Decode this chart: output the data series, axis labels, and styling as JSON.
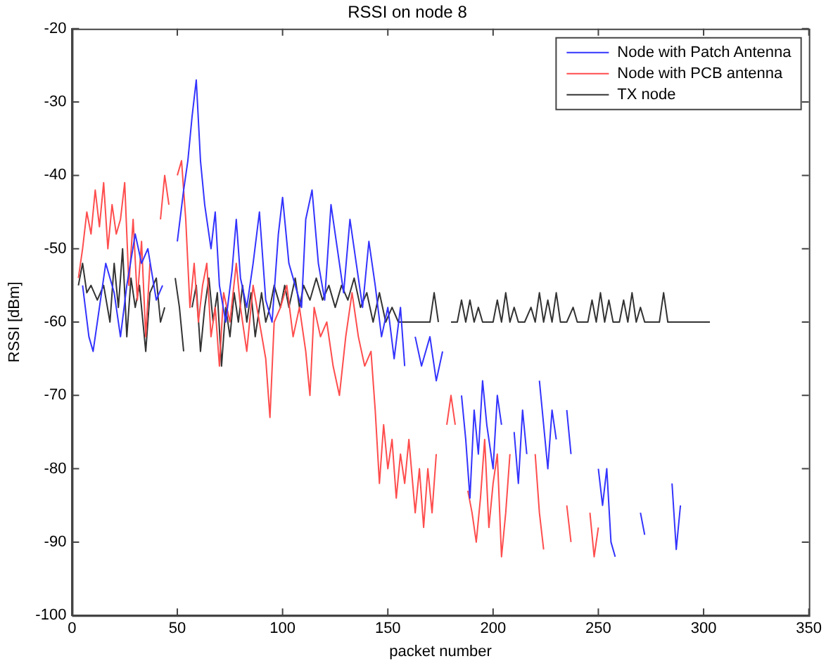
{
  "chart_data": {
    "type": "line",
    "title": "RSSI on node 8",
    "xlabel": "packet number",
    "ylabel": "RSSI [dBm]",
    "xlim": [
      0,
      350
    ],
    "xticks": [
      0,
      50,
      100,
      150,
      200,
      250,
      300,
      350
    ],
    "ylim": [
      -100,
      -20
    ],
    "yticks": [
      -100,
      -90,
      -80,
      -70,
      -60,
      -50,
      -40,
      -30,
      -20
    ],
    "grid": false,
    "legend": "top right",
    "marker": "none",
    "line_style": "solid",
    "series": [
      {
        "name": "Node with Patch Antenna",
        "color": "#3333ff",
        "x": [
          5,
          8,
          10,
          13,
          16,
          20,
          23,
          26,
          30,
          33,
          36,
          40,
          43,
          46,
          50,
          53,
          55,
          57,
          59,
          61,
          63,
          66,
          68,
          70,
          73,
          76,
          78,
          80,
          83,
          86,
          89,
          92,
          95,
          98,
          100,
          103,
          106,
          109,
          111,
          114,
          117,
          120,
          123,
          126,
          129,
          132,
          135,
          138,
          141,
          144,
          147,
          150,
          153,
          156,
          158,
          160,
          163,
          166,
          170,
          173,
          176,
          178,
          185,
          187,
          189,
          191,
          193,
          195,
          197,
          200,
          202,
          204,
          206,
          210,
          212,
          214,
          216,
          218,
          222,
          224,
          226,
          228,
          230,
          232,
          235,
          237,
          238,
          250,
          252,
          254,
          256,
          258,
          260,
          270,
          272,
          273,
          285,
          287,
          289
        ],
        "values": [
          -55,
          -62,
          -64,
          -58,
          -52,
          -56,
          -62,
          -55,
          -48,
          -52,
          -50,
          -57,
          -55,
          null,
          -49,
          -42,
          -38,
          -32,
          -27,
          -38,
          -44,
          -50,
          -45,
          -55,
          -60,
          -53,
          -46,
          -54,
          -58,
          -52,
          -45,
          -57,
          -60,
          -48,
          -43,
          -52,
          -55,
          -58,
          -46,
          -42,
          -52,
          -57,
          -44,
          -50,
          -56,
          -46,
          -52,
          -58,
          -49,
          -55,
          -62,
          -58,
          -65,
          -58,
          -66,
          null,
          -62,
          -66,
          -62,
          -68,
          -64,
          null,
          -70,
          -76,
          -84,
          -72,
          -78,
          -68,
          -74,
          -80,
          -70,
          -74,
          null,
          -75,
          -82,
          -72,
          -78,
          null,
          -68,
          -74,
          -80,
          -72,
          -76,
          null,
          -72,
          -78,
          null,
          -80,
          -85,
          -80,
          -90,
          -92,
          null,
          -86,
          -89,
          null,
          -82,
          -91,
          -85
        ]
      },
      {
        "name": "Node with PCB antenna",
        "color": "#ff4d4d",
        "x": [
          3,
          5,
          7,
          9,
          11,
          13,
          15,
          17,
          19,
          21,
          23,
          25,
          27,
          29,
          31,
          33,
          35,
          37,
          40,
          42,
          44,
          46,
          48,
          50,
          52,
          54,
          56,
          58,
          60,
          62,
          64,
          66,
          68,
          70,
          72,
          75,
          78,
          80,
          83,
          86,
          89,
          92,
          94,
          96,
          99,
          102,
          105,
          108,
          111,
          113,
          115,
          118,
          121,
          124,
          127,
          130,
          133,
          136,
          139,
          142,
          144,
          146,
          148,
          150,
          152,
          154,
          156,
          158,
          160,
          163,
          165,
          167,
          169,
          171,
          173,
          175,
          178,
          180,
          182,
          184,
          188,
          190,
          192,
          194,
          196,
          198,
          200,
          202,
          204,
          206,
          208,
          210,
          220,
          222,
          224,
          226,
          235,
          237,
          238,
          246,
          248,
          250
        ],
        "values": [
          -54,
          -50,
          -45,
          -48,
          -42,
          -47,
          -41,
          -50,
          -44,
          -48,
          -46,
          -41,
          -55,
          -46,
          -57,
          -49,
          -62,
          -52,
          null,
          -46,
          -40,
          -44,
          null,
          -40,
          -38,
          -46,
          -58,
          -52,
          -60,
          -55,
          -52,
          -62,
          -58,
          -66,
          -56,
          -60,
          -52,
          -58,
          -64,
          -55,
          -60,
          -65,
          -73,
          -60,
          -58,
          -55,
          -62,
          -58,
          -64,
          -70,
          -58,
          -62,
          -60,
          -66,
          -70,
          -62,
          -56,
          -62,
          -66,
          -64,
          -72,
          -82,
          -74,
          -80,
          -76,
          -84,
          -78,
          -82,
          -76,
          -86,
          -80,
          -88,
          -80,
          -86,
          -78,
          null,
          -74,
          -70,
          -74,
          null,
          -83,
          -86,
          -90,
          -84,
          -76,
          -88,
          -82,
          -78,
          -92,
          -86,
          -78,
          null,
          -78,
          -86,
          -91,
          null,
          -85,
          -90,
          null,
          -86,
          -92,
          -88
        ]
      },
      {
        "name": "TX node",
        "color": "#333333",
        "x": [
          3,
          5,
          7,
          9,
          12,
          15,
          18,
          20,
          22,
          24,
          26,
          28,
          30,
          32,
          35,
          37,
          40,
          42,
          44,
          46,
          49,
          51,
          53,
          55,
          57,
          59,
          61,
          63,
          65,
          67,
          69,
          71,
          73,
          75,
          77,
          79,
          81,
          83,
          85,
          87,
          90,
          92,
          94,
          96,
          99,
          101,
          103,
          106,
          108,
          110,
          113,
          116,
          119,
          122,
          125,
          128,
          131,
          134,
          137,
          140,
          143,
          146,
          149,
          152,
          155,
          158,
          165,
          170,
          172,
          174,
          176,
          180,
          183,
          185,
          187,
          189,
          191,
          193,
          195,
          197,
          200,
          202,
          204,
          206,
          208,
          210,
          212,
          215,
          218,
          220,
          222,
          224,
          226,
          228,
          230,
          232,
          235,
          238,
          240,
          245,
          247,
          249,
          251,
          253,
          255,
          257,
          260,
          262,
          264,
          266,
          268,
          270,
          272,
          275,
          279,
          281,
          283,
          290,
          300,
          303
        ],
        "values": [
          -55,
          -52,
          -56,
          -55,
          -57,
          -55,
          -60,
          -52,
          -58,
          -50,
          -62,
          -54,
          -58,
          -55,
          -64,
          -56,
          -54,
          -60,
          -58,
          null,
          -54,
          -58,
          -64,
          null,
          -58,
          -55,
          -64,
          -58,
          -54,
          -60,
          -56,
          -66,
          -58,
          -62,
          -56,
          -60,
          -55,
          -60,
          -56,
          -62,
          -56,
          -60,
          -58,
          -55,
          -58,
          -55,
          -58,
          -54,
          -58,
          -55,
          -57,
          -54,
          -57,
          -55,
          -58,
          -55,
          -57,
          -54,
          -58,
          -56,
          -60,
          -56,
          -60,
          -58,
          -60,
          -60,
          -60,
          -60,
          -56,
          -60,
          null,
          -60,
          -60,
          -57,
          -60,
          -57,
          -60,
          -58,
          -60,
          -60,
          -60,
          -57,
          -60,
          -56,
          -60,
          -58,
          -60,
          -60,
          -58,
          -60,
          -56,
          -60,
          -57,
          -60,
          -56,
          -60,
          -60,
          -58,
          -60,
          -60,
          -57,
          -60,
          -56,
          -60,
          -57,
          -60,
          -60,
          -57,
          -60,
          -56,
          -60,
          -58,
          -60,
          -60,
          -60,
          -56,
          -60,
          -60,
          -60,
          -60
        ]
      }
    ]
  }
}
